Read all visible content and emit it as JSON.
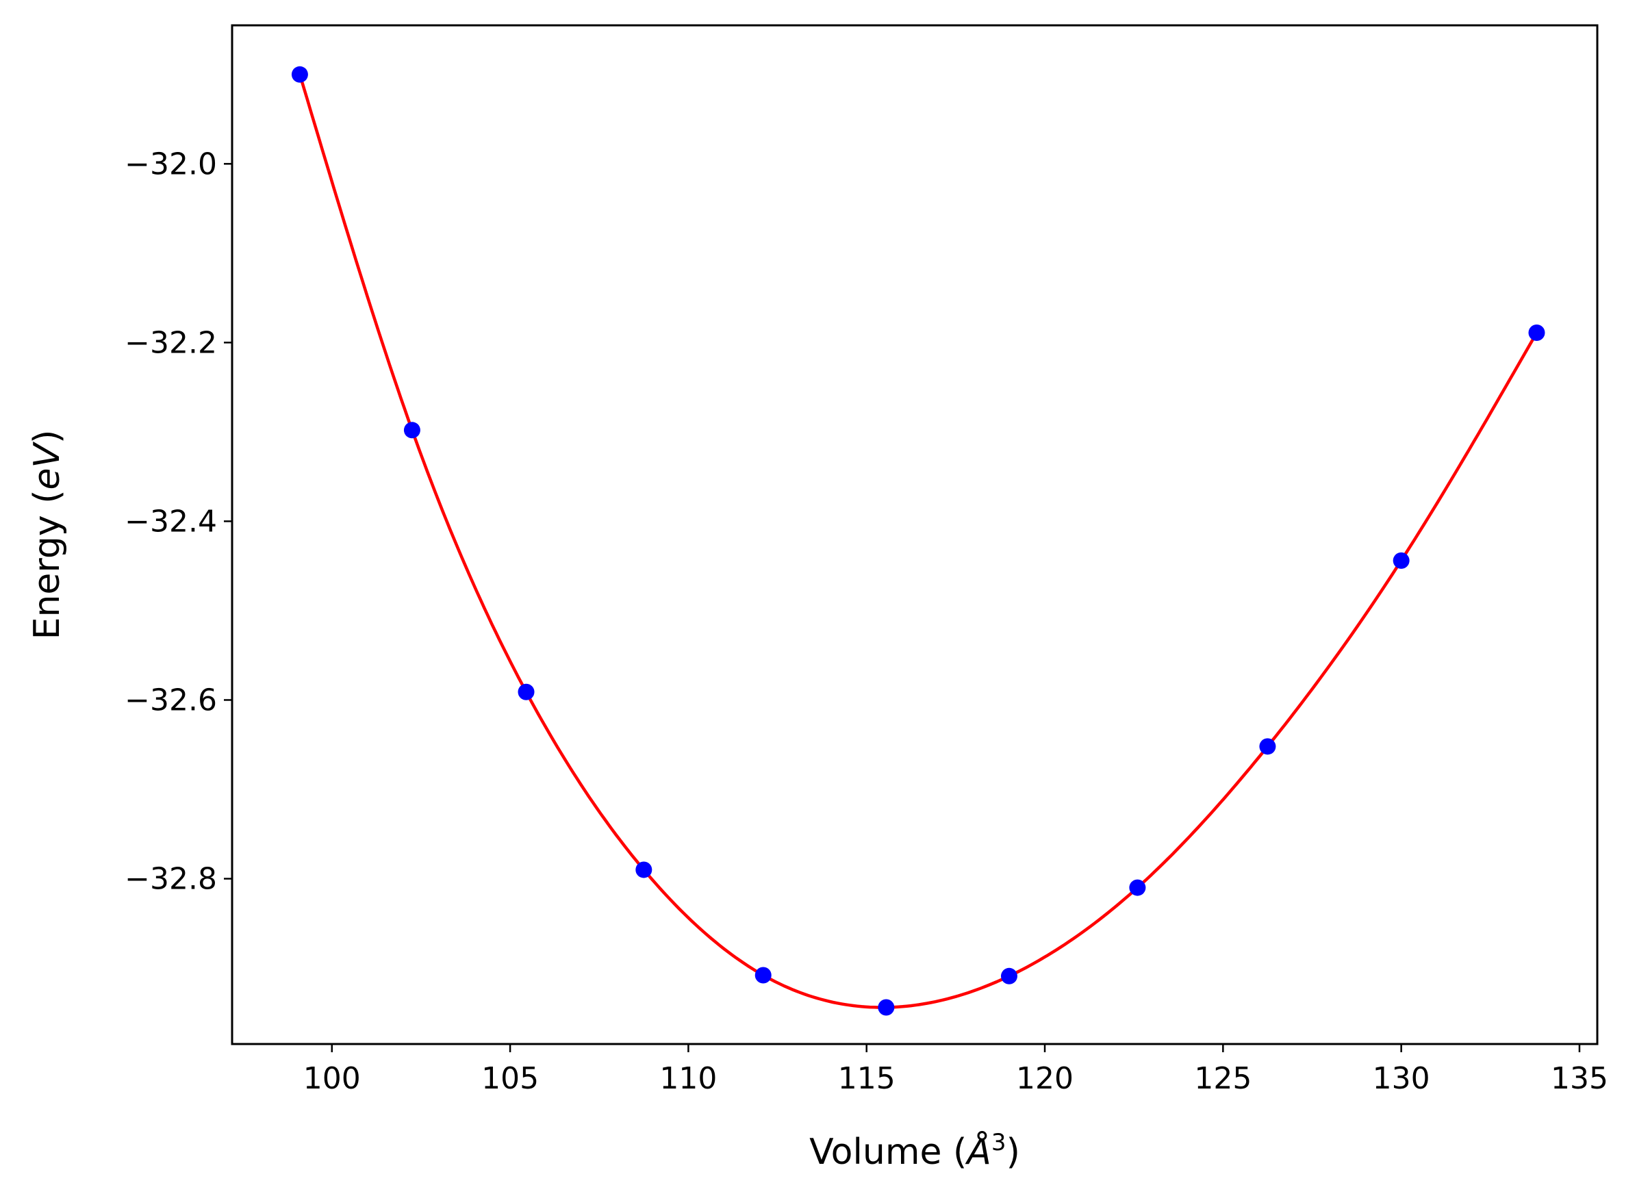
{
  "chart_data": {
    "type": "scatter",
    "xlabel": "Volume (Å³)",
    "xlabel_parts": {
      "prefix": "Volume (",
      "unit": "Å",
      "sup": "3",
      "suffix": ")"
    },
    "ylabel": "Energy (eV)",
    "ylabel_parts": {
      "prefix": "Energy (",
      "unit": "eV",
      "suffix": ")"
    },
    "xlim": [
      97.2,
      135.5
    ],
    "ylim": [
      -32.985,
      -31.845
    ],
    "x_ticks": [
      100,
      105,
      110,
      115,
      120,
      125,
      130,
      135
    ],
    "x_tick_labels": [
      "100",
      "105",
      "110",
      "115",
      "120",
      "125",
      "130",
      "135"
    ],
    "y_ticks": [
      -32.0,
      -32.2,
      -32.4,
      -32.6,
      -32.8
    ],
    "y_tick_labels": [
      "−32.0",
      "−32.2",
      "−32.4",
      "−32.6",
      "−32.8"
    ],
    "grid": false,
    "series": [
      {
        "kind": "points",
        "color": "#0000ff",
        "x": [
          99.1,
          102.25,
          105.45,
          108.75,
          112.1,
          115.55,
          119.0,
          122.6,
          126.25,
          130.0,
          133.8
        ],
        "y": [
          -31.9,
          -32.298,
          -32.591,
          -32.79,
          -32.908,
          -32.944,
          -32.909,
          -32.81,
          -32.652,
          -32.444,
          -32.189
        ]
      },
      {
        "kind": "fit-curve",
        "color": "#ff0000",
        "x": [
          99.1,
          102.25,
          105.45,
          108.75,
          112.1,
          115.55,
          119.0,
          122.6,
          126.25,
          130.0,
          133.8
        ],
        "y": [
          -31.9,
          -32.298,
          -32.591,
          -32.79,
          -32.908,
          -32.944,
          -32.909,
          -32.81,
          -32.652,
          -32.444,
          -32.189
        ]
      }
    ]
  }
}
